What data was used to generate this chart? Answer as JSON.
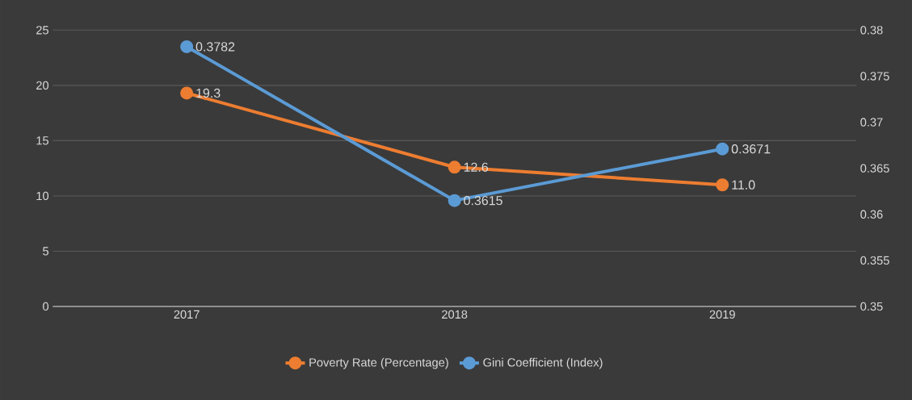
{
  "chart_data": {
    "type": "line",
    "categories": [
      "2017",
      "2018",
      "2019"
    ],
    "series": [
      {
        "name": "Poverty Rate (Percentage)",
        "color": "#ed7d31",
        "values": [
          19.3,
          12.6,
          11.0
        ],
        "value_labels": [
          "19.3",
          "12.6",
          "11.0"
        ]
      },
      {
        "name": "Gini Coefficient (Index)",
        "color": "#5b9bd5",
        "values": [
          0.3782,
          0.3615,
          0.3671
        ],
        "axis": "y2",
        "value_labels": [
          "0.3782",
          "0.3615",
          "0.3671"
        ]
      }
    ],
    "ylim": [
      0,
      25
    ],
    "yticks": [
      0,
      5,
      10,
      15,
      20,
      25
    ],
    "y2lim": [
      0.35,
      0.38
    ],
    "y2ticks": [
      0.35,
      0.355,
      0.36,
      0.365,
      0.37,
      0.375,
      0.38
    ],
    "grid": "y",
    "legend": "bottom",
    "marker": "circle",
    "line_style": "solid"
  }
}
